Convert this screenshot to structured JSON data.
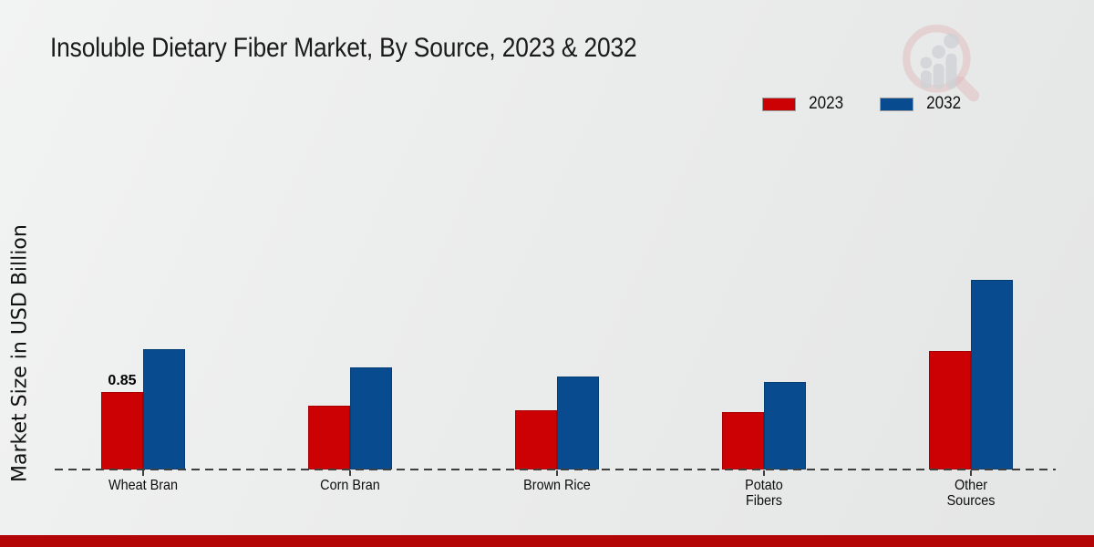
{
  "page": {
    "footer_bar_color": "#b30506",
    "icons": {
      "watermark": "magnifier-bar-chart-logo"
    }
  },
  "chart_data": {
    "type": "bar",
    "title": "Insoluble Dietary Fiber Market, By Source, 2023 & 2032",
    "xlabel": "",
    "ylabel": "Market Size in USD Billion",
    "categories": [
      "Wheat Bran",
      "Corn Bran",
      "Brown Rice",
      "Potato Fibers",
      "Other Sources"
    ],
    "category_label_lines": [
      [
        "Wheat Bran"
      ],
      [
        "Corn Bran"
      ],
      [
        "Brown Rice"
      ],
      [
        "Potato",
        "Fibers"
      ],
      [
        "Other",
        "Sources"
      ]
    ],
    "series": [
      {
        "name": "2023",
        "color": "#cc0103",
        "values": [
          0.85,
          0.7,
          0.65,
          0.63,
          1.3
        ]
      },
      {
        "name": "2032",
        "color": "#084b8e",
        "values": [
          1.32,
          1.12,
          1.02,
          0.96,
          2.08
        ]
      }
    ],
    "bar_labels": [
      {
        "series": "2023",
        "category_index": 0,
        "text": "0.85"
      }
    ],
    "ylim": [
      0,
      2.3
    ],
    "grid": false,
    "baseline_style": "dashed",
    "legend_position": "top-right"
  }
}
